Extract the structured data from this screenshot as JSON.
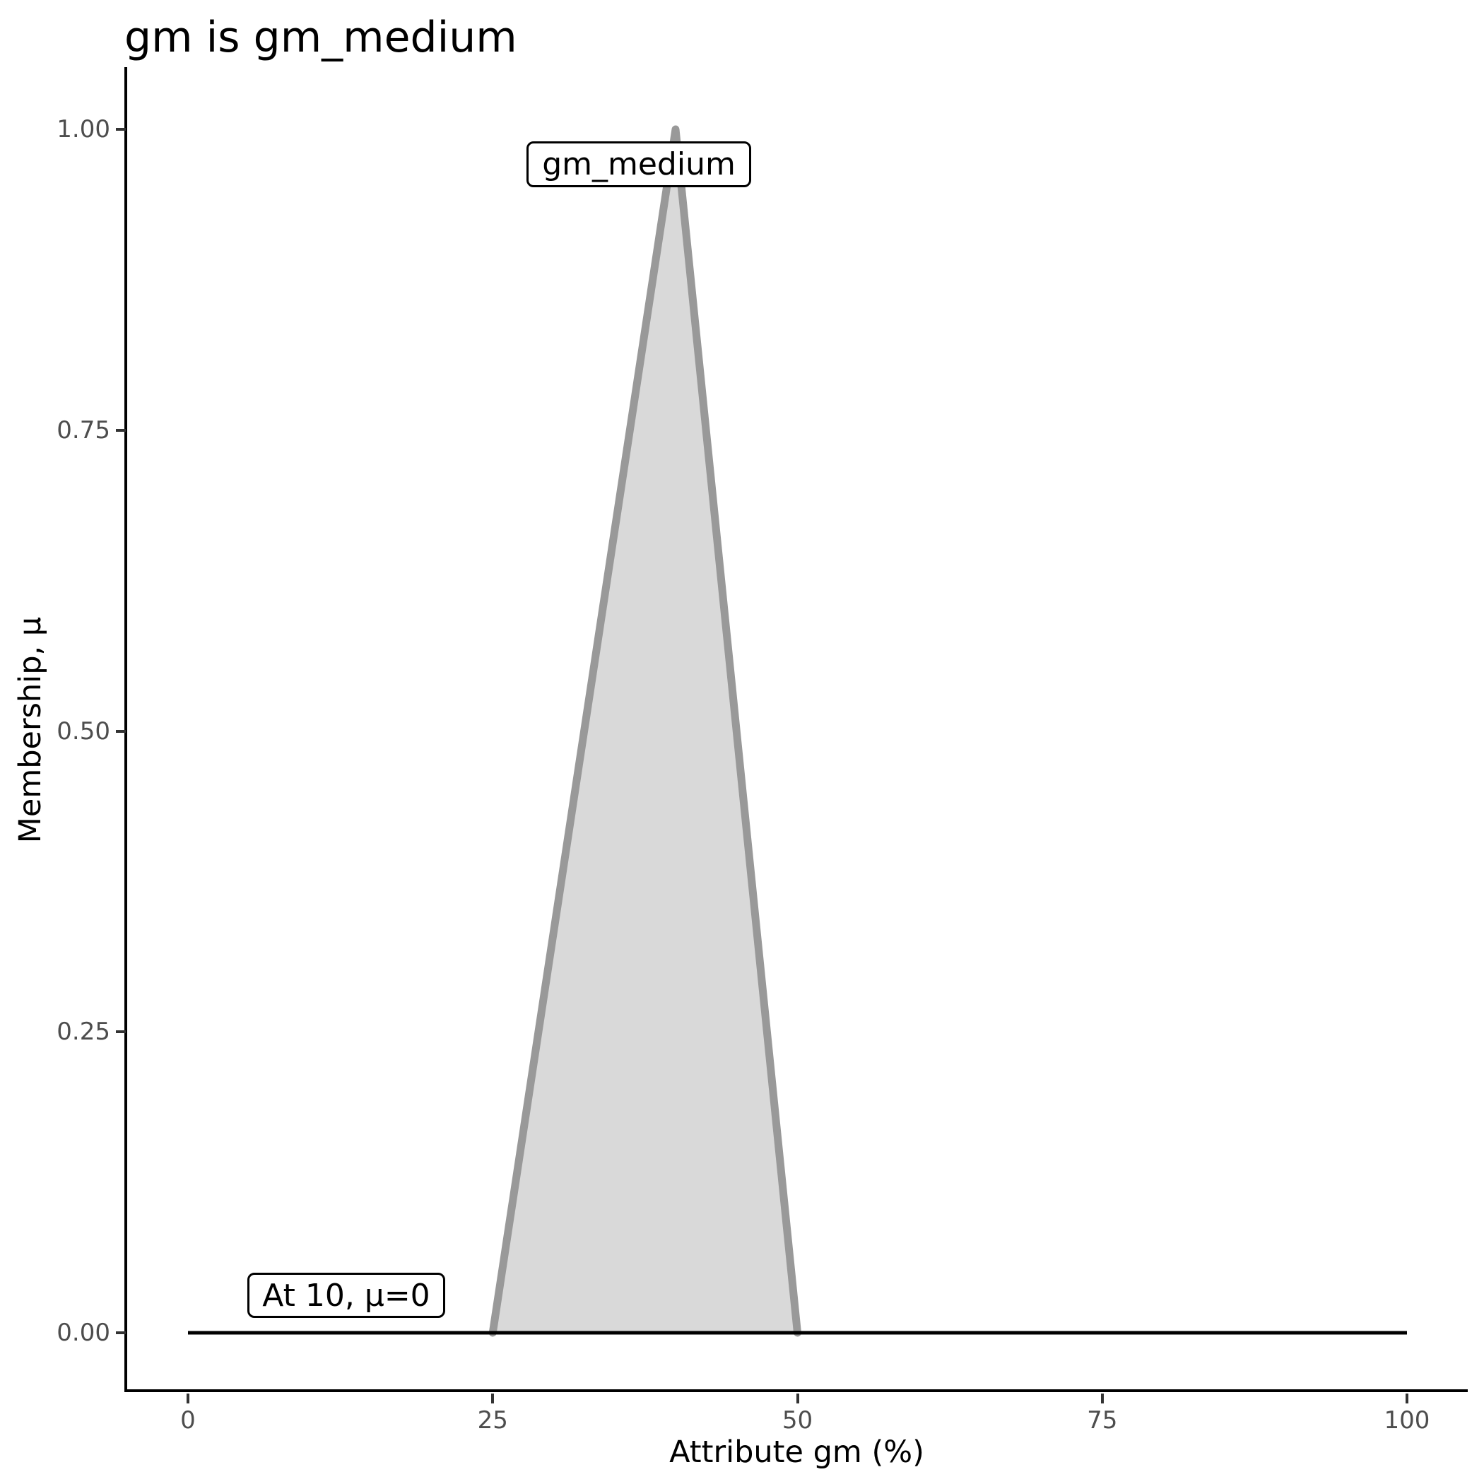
{
  "chart_data": {
    "type": "area",
    "title": "gm is gm_medium",
    "xlabel": "Attribute gm (%)",
    "ylabel": "Membership, μ",
    "xlim": [
      0,
      100
    ],
    "ylim": [
      0,
      1
    ],
    "grid": "off",
    "x_ticks": [
      0,
      25,
      50,
      75,
      100
    ],
    "x_tick_labels": [
      "0",
      "25",
      "50",
      "75",
      "100"
    ],
    "y_ticks": [
      0,
      0.25,
      0.5,
      0.75,
      1
    ],
    "y_tick_labels": [
      "0.00",
      "0.25",
      "0.50",
      "0.75",
      "1.00"
    ],
    "series": [
      {
        "name": "universe_baseline",
        "type": "line",
        "points": [
          [
            0,
            0
          ],
          [
            100,
            0
          ]
        ],
        "color": "#000000",
        "width": 5
      },
      {
        "name": "gm_medium",
        "type": "area",
        "points": [
          [
            25,
            0
          ],
          [
            40,
            1
          ],
          [
            50,
            0
          ]
        ],
        "stroke": "#999999",
        "stroke_width": 11,
        "fill": "#d9d9d9"
      }
    ],
    "annotations": [
      {
        "text": "gm_medium",
        "x": 40,
        "y": 0.97
      },
      {
        "text": "At 10, μ=0",
        "x": 10,
        "y": 0.03
      }
    ]
  },
  "colors": {
    "background": "#ffffff",
    "axis_line": "#000000",
    "tick_mark": "#333333",
    "tick_label": "#4d4d4d",
    "set_stroke": "#999999",
    "set_fill": "#d9d9d9",
    "annotation_border": "#000000",
    "annotation_fill": "#ffffff"
  }
}
